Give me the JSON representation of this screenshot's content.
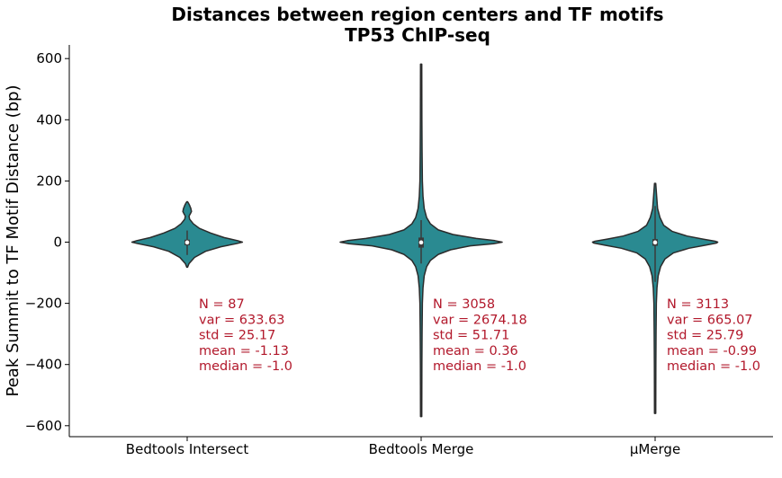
{
  "chart_data": {
    "type": "violin",
    "title": "Distances between region centers and TF motifs",
    "subtitle": "TP53 ChIP-seq",
    "xlabel": "",
    "ylabel": "Peak Summit to TF Motif Distance (bp)",
    "ylim": [
      -630,
      640
    ],
    "yticks": [
      600,
      400,
      200,
      0,
      -200,
      -400,
      -600
    ],
    "ytick_labels": [
      "600",
      "400",
      "200",
      "0",
      "−200",
      "−400",
      "−600"
    ],
    "categories": [
      "Bedtools Intersect",
      "Bedtools Merge",
      "μMerge"
    ],
    "grid": false,
    "colors": {
      "violin_fill": "#2a8a91",
      "violin_edge": "#2b2b2b",
      "annotation": "#b2182b"
    },
    "violins": [
      {
        "category": "Bedtools Intersect",
        "min": -82,
        "max": 132,
        "q1": -10,
        "median": -1.0,
        "q3": 8,
        "whisker_low": -42,
        "whisker_high": 38,
        "profile": [
          [
            -82,
            0.6
          ],
          [
            -70,
            3
          ],
          [
            -50,
            12
          ],
          [
            -30,
            30
          ],
          [
            -15,
            55
          ],
          [
            -5,
            80
          ],
          [
            0,
            90
          ],
          [
            5,
            82
          ],
          [
            15,
            60
          ],
          [
            30,
            38
          ],
          [
            45,
            20
          ],
          [
            60,
            10
          ],
          [
            75,
            4
          ],
          [
            85,
            3
          ],
          [
            92,
            5
          ],
          [
            100,
            7
          ],
          [
            110,
            6
          ],
          [
            120,
            4
          ],
          [
            128,
            2
          ],
          [
            132,
            0.6
          ]
        ]
      },
      {
        "category": "Bedtools Merge",
        "min": -570,
        "max": 582,
        "q1": -18,
        "median": -1.0,
        "q3": 15,
        "whisker_low": -70,
        "whisker_high": 72,
        "profile": [
          [
            -570,
            1
          ],
          [
            -400,
            1.2
          ],
          [
            -300,
            1.5
          ],
          [
            -200,
            2
          ],
          [
            -150,
            3
          ],
          [
            -110,
            5
          ],
          [
            -80,
            9
          ],
          [
            -60,
            15
          ],
          [
            -40,
            28
          ],
          [
            -25,
            48
          ],
          [
            -12,
            80
          ],
          [
            -5,
            118
          ],
          [
            0,
            132
          ],
          [
            5,
            120
          ],
          [
            12,
            90
          ],
          [
            25,
            52
          ],
          [
            40,
            28
          ],
          [
            60,
            15
          ],
          [
            80,
            9
          ],
          [
            110,
            5
          ],
          [
            150,
            3
          ],
          [
            200,
            2
          ],
          [
            300,
            1.5
          ],
          [
            400,
            1.2
          ],
          [
            582,
            1
          ]
        ]
      },
      {
        "category": "μMerge",
        "min": -560,
        "max": 192,
        "q1": -12,
        "median": -1.0,
        "q3": 10,
        "whisker_low": -130,
        "whisker_high": 118,
        "profile": [
          [
            -560,
            1
          ],
          [
            -400,
            1.2
          ],
          [
            -300,
            1.5
          ],
          [
            -200,
            2
          ],
          [
            -150,
            3
          ],
          [
            -110,
            5
          ],
          [
            -80,
            9
          ],
          [
            -55,
            16
          ],
          [
            -35,
            30
          ],
          [
            -20,
            55
          ],
          [
            -10,
            82
          ],
          [
            -3,
            100
          ],
          [
            0,
            102
          ],
          [
            3,
            98
          ],
          [
            10,
            78
          ],
          [
            20,
            52
          ],
          [
            35,
            28
          ],
          [
            55,
            14
          ],
          [
            80,
            8
          ],
          [
            110,
            4
          ],
          [
            150,
            2.5
          ],
          [
            192,
            1
          ]
        ]
      }
    ],
    "annotations": [
      {
        "category": "Bedtools Intersect",
        "lines": [
          "N = 87",
          "var = 633.63",
          "std = 25.17",
          "mean = -1.13",
          "median = -1.0"
        ]
      },
      {
        "category": "Bedtools Merge",
        "lines": [
          "N = 3058",
          "var = 2674.18",
          "std = 51.71",
          "mean = 0.36",
          "median = -1.0"
        ]
      },
      {
        "category": "μMerge",
        "lines": [
          "N = 3113",
          "var = 665.07",
          "std = 25.79",
          "mean = -0.99",
          "median = -1.0"
        ]
      }
    ]
  }
}
